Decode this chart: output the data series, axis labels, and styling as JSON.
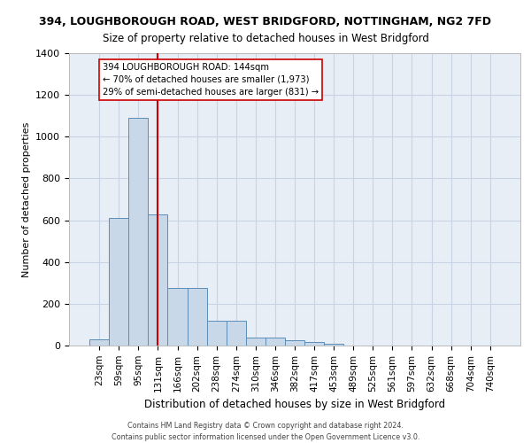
{
  "title1": "394, LOUGHBOROUGH ROAD, WEST BRIDGFORD, NOTTINGHAM, NG2 7FD",
  "title2": "Size of property relative to detached houses in West Bridgford",
  "xlabel": "Distribution of detached houses by size in West Bridgford",
  "ylabel": "Number of detached properties",
  "categories": [
    "23sqm",
    "59sqm",
    "95sqm",
    "131sqm",
    "166sqm",
    "202sqm",
    "238sqm",
    "274sqm",
    "310sqm",
    "346sqm",
    "382sqm",
    "417sqm",
    "453sqm",
    "489sqm",
    "525sqm",
    "561sqm",
    "597sqm",
    "632sqm",
    "668sqm",
    "704sqm",
    "740sqm"
  ],
  "bar_heights": [
    30,
    610,
    1090,
    630,
    275,
    275,
    120,
    120,
    40,
    40,
    25,
    15,
    10,
    0,
    0,
    0,
    0,
    0,
    0,
    0,
    0
  ],
  "bar_color": "#c8d8e8",
  "bar_edge_color": "#5b8db8",
  "vline_x_index": 3,
  "vline_color": "#cc0000",
  "ylim": [
    0,
    1400
  ],
  "yticks": [
    0,
    200,
    400,
    600,
    800,
    1000,
    1200,
    1400
  ],
  "annotation_text": "394 LOUGHBOROUGH ROAD: 144sqm\n← 70% of detached houses are smaller (1,973)\n29% of semi-detached houses are larger (831) →",
  "annotation_box_color": "#ffffff",
  "annotation_box_edge": "#cc0000",
  "grid_color": "#c8d4e4",
  "background_color": "#e8eef6",
  "footer1": "Contains HM Land Registry data © Crown copyright and database right 2024.",
  "footer2": "Contains public sector information licensed under the Open Government Licence v3.0."
}
